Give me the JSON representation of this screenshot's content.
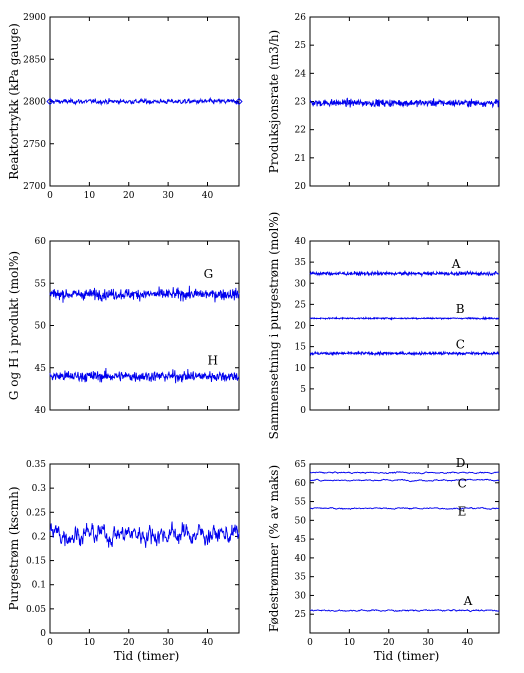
{
  "chart_data": [
    {
      "type": "line",
      "ylabel": "Reaktortrykk (kPa gauge)",
      "xlabel": "",
      "xlim": [
        0,
        48
      ],
      "ylim": [
        2700,
        2900
      ],
      "xticks": [
        0,
        10,
        20,
        30,
        40
      ],
      "yticks": [
        2700,
        2750,
        2800,
        2850,
        2900
      ],
      "series": [
        {
          "mean": 2800,
          "noise": 1.2,
          "smooth": 0.3,
          "endpoint_markers": true
        }
      ],
      "annotations": []
    },
    {
      "type": "line",
      "ylabel": "Produksjonsrate (m3/h)",
      "xlabel": "",
      "xlim": [
        0,
        48
      ],
      "ylim": [
        20,
        26
      ],
      "xticks": [],
      "yticks": [
        20,
        21,
        22,
        23,
        24,
        25,
        26
      ],
      "series": [
        {
          "mean": 22.95,
          "noise": 0.09,
          "smooth": 0.0,
          "endpoint_markers": false
        }
      ],
      "annotations": []
    },
    {
      "type": "line",
      "ylabel": "G og H i produkt (mol%)",
      "xlabel": "",
      "xlim": [
        0,
        48
      ],
      "ylim": [
        40,
        60
      ],
      "xticks": [],
      "yticks": [
        40,
        45,
        50,
        55,
        60
      ],
      "series": [
        {
          "mean": 53.7,
          "noise": 0.45,
          "smooth": 0.0,
          "endpoint_markers": false
        },
        {
          "mean": 44.0,
          "noise": 0.45,
          "smooth": 0.0,
          "endpoint_markers": false
        }
      ],
      "annotations": [
        {
          "text": "G",
          "x": 39,
          "y": 55.6
        },
        {
          "text": "H",
          "x": 40,
          "y": 45.4
        }
      ]
    },
    {
      "type": "line",
      "ylabel": "Sammensetning i purgestrøm (mol%)",
      "xlabel": "",
      "xlim": [
        0,
        48
      ],
      "ylim": [
        0,
        40
      ],
      "xticks": [],
      "yticks": [
        0,
        5,
        10,
        15,
        20,
        25,
        30,
        35,
        40
      ],
      "series": [
        {
          "mean": 32.3,
          "noise": 0.3,
          "smooth": 0.0,
          "endpoint_markers": false
        },
        {
          "mean": 21.7,
          "noise": 0.12,
          "smooth": 0.0,
          "endpoint_markers": false
        },
        {
          "mean": 13.4,
          "noise": 0.25,
          "smooth": 0.0,
          "endpoint_markers": false
        }
      ],
      "annotations": [
        {
          "text": "A",
          "x": 36,
          "y": 33.6
        },
        {
          "text": "B",
          "x": 37,
          "y": 22.9
        },
        {
          "text": "C",
          "x": 37,
          "y": 14.6
        }
      ]
    },
    {
      "type": "line",
      "ylabel": "Purgestrøm (kscmh)",
      "xlabel": "Tid (timer)",
      "xlim": [
        0,
        48
      ],
      "ylim": [
        0,
        0.35
      ],
      "xticks": [
        0,
        10,
        20,
        30,
        40
      ],
      "yticks": [
        0,
        0.05,
        0.1,
        0.15,
        0.2,
        0.25,
        0.3,
        0.35
      ],
      "series": [
        {
          "mean": 0.205,
          "noise": 0.018,
          "smooth": 0.72,
          "endpoint_markers": false
        }
      ],
      "annotations": []
    },
    {
      "type": "line",
      "ylabel": "Fødestrømmer (% av maks)",
      "xlabel": "Tid (timer)",
      "xlim": [
        0,
        48
      ],
      "ylim": [
        20,
        65
      ],
      "xticks": [
        0,
        10,
        20,
        30,
        40
      ],
      "yticks": [
        25,
        30,
        35,
        40,
        45,
        50,
        55,
        60,
        65
      ],
      "series": [
        {
          "mean": 62.7,
          "noise": 0.25,
          "smooth": 0.85,
          "endpoint_markers": false
        },
        {
          "mean": 60.7,
          "noise": 0.25,
          "smooth": 0.85,
          "endpoint_markers": false
        },
        {
          "mean": 53.2,
          "noise": 0.25,
          "smooth": 0.85,
          "endpoint_markers": false
        },
        {
          "mean": 26.0,
          "noise": 0.3,
          "smooth": 0.85,
          "endpoint_markers": false
        }
      ],
      "annotations": [
        {
          "text": "D",
          "x": 37,
          "y": 64.2
        },
        {
          "text": "C",
          "x": 37.5,
          "y": 58.8
        },
        {
          "text": "E",
          "x": 37.5,
          "y": 51.3
        },
        {
          "text": "A",
          "x": 39,
          "y": 27.5
        }
      ]
    }
  ]
}
